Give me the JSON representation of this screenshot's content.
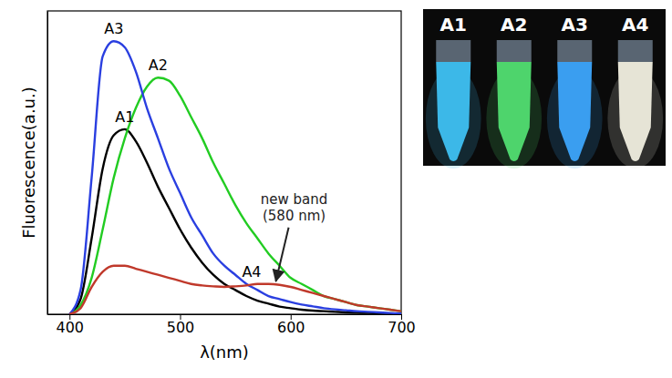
{
  "chart_data": {
    "type": "line",
    "x_label": "λ(nm)",
    "y_label": "Fluorescence(a.u.)",
    "xlim": [
      380,
      700
    ],
    "xticks": [
      400,
      500,
      600,
      700
    ],
    "ylim": [
      0,
      100
    ],
    "tick_labels": "x",
    "grid": false,
    "x": [
      400,
      410,
      420,
      430,
      440,
      450,
      460,
      470,
      480,
      490,
      500,
      510,
      520,
      530,
      540,
      550,
      560,
      570,
      580,
      590,
      600,
      610,
      620,
      630,
      640,
      650,
      660,
      670,
      680,
      690,
      700
    ],
    "series": [
      {
        "name": "A1",
        "color": "#000000",
        "values": [
          0,
          5,
          25,
          48,
          59,
          61,
          57,
          50,
          42,
          35,
          28,
          22,
          17,
          13,
          10,
          8,
          6,
          4.5,
          3.5,
          2.5,
          2,
          1.5,
          1.2,
          1,
          0.8,
          0.6,
          0.5,
          0.4,
          0.3,
          0.2,
          0.1
        ]
      },
      {
        "name": "A2",
        "color": "#22cc22",
        "values": [
          0,
          3,
          12,
          28,
          45,
          58,
          68,
          75,
          78,
          77,
          72,
          65,
          58,
          50,
          43,
          36,
          30,
          25,
          20,
          16,
          12,
          10,
          8,
          6,
          5,
          4,
          3,
          2.5,
          2,
          1.5,
          1
        ]
      },
      {
        "name": "A3",
        "color": "#2a3fe0",
        "values": [
          0,
          8,
          45,
          85,
          90,
          88,
          80,
          68,
          58,
          48,
          40,
          32,
          26,
          20,
          16,
          13,
          10,
          8,
          6,
          5,
          4,
          3.2,
          2.6,
          2,
          1.6,
          1.3,
          1,
          0.8,
          0.6,
          0.4,
          0.3
        ]
      },
      {
        "name": "A4",
        "color": "#c0392b",
        "values": [
          0,
          2,
          9,
          14,
          16,
          16,
          15,
          14,
          13,
          12,
          11,
          10,
          9.5,
          9.2,
          9,
          9.2,
          9.5,
          10,
          10,
          9.7,
          9,
          8,
          7,
          6,
          5,
          4,
          3,
          2.5,
          2,
          1.5,
          1
        ]
      }
    ],
    "annotations": [
      {
        "lines": [
          "new band",
          "(580 nm)"
        ],
        "x": 585,
        "y": 10
      }
    ]
  },
  "photo": {
    "labels": [
      "A1",
      "A2",
      "A3",
      "A4"
    ],
    "colors": [
      "#3cb8e8",
      "#4ed46c",
      "#3a9ef0",
      "#e6e4d6"
    ]
  }
}
